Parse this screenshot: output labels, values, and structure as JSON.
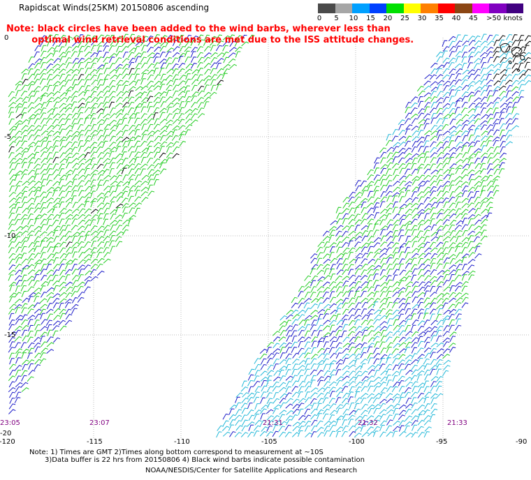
{
  "title": "Rapidscat Winds(25KM) 20150806 ascending",
  "note": {
    "line1": "Note: black circles have been added to the wind barbs, wherever less than",
    "line2": "optimal wind retrieval conditions are met due to the ISS attitude changes."
  },
  "legend": {
    "labels": [
      "0",
      "5",
      "10",
      "15",
      "20",
      "25",
      "30",
      "35",
      "40",
      "45",
      ">50 knots"
    ],
    "colors": [
      "#4a4a4a",
      "#a6a6a6",
      "#00a0ff",
      "#0040ff",
      "#00e000",
      "#ffff00",
      "#ff8000",
      "#ff0000",
      "#8b4513",
      "#ff00ff",
      "#8000c0",
      "#400080"
    ]
  },
  "axes": {
    "lat_labels": [
      "0",
      "-5",
      "-10",
      "-15",
      "-20"
    ],
    "lon_labels": [
      "-120",
      "-115",
      "-110",
      "-105",
      "-100",
      "-95",
      "-90"
    ]
  },
  "times": [
    "23:05",
    "23:07",
    "21:31",
    "21:32",
    "21:33"
  ],
  "footer": {
    "line1": "Note: 1) Times are GMT 2)Times along bottom correspond to measurement at ~10S",
    "line2": "3)Data buffer is 22 hrs from 20150806 4) Black wind barbs indicate possible contamination",
    "line3": "NOAA/NESDIS/Center for Satellite Applications and Research"
  },
  "colors": {
    "barb_green": "#22cc22",
    "barb_blue": "#1a1ac8",
    "barb_cyan": "#22b8d8",
    "barb_black": "#000000",
    "note_red": "#ff0000",
    "time_purple": "#800080"
  }
}
